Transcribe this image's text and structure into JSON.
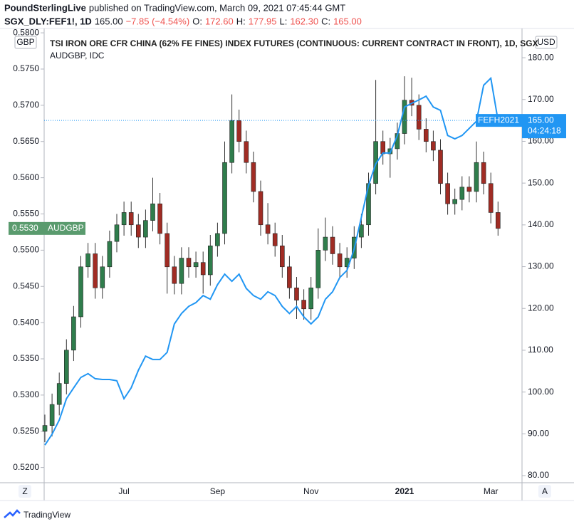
{
  "header": {
    "publisher": "PoundSterlingLive",
    "published": "published on TradingView.com, March 09, 2021 07:45:44 GMT",
    "quote": {
      "symbol": "SGX_DLY:FEF1!, 1D",
      "last": "165.00",
      "change": "−7.85 (−4.54%)",
      "o_label": "O:",
      "o": "172.60",
      "h_label": "H:",
      "h": "177.95",
      "l_label": "L:",
      "l": "162.30",
      "c_label": "C:",
      "c": "165.00"
    }
  },
  "footer": {
    "brand": "TradingView"
  },
  "buttons": {
    "left": "Z",
    "right": "A"
  },
  "chart_data": {
    "type": "candlestick",
    "legend": [
      "TSI IRON ORE CFR CHINA (62% FE FINES) INDEX FUTURES (CONTINUOUS: CURRENT CONTRACT IN FRONT), 1D, SGX",
      "AUDGBP, IDC"
    ],
    "y_label": "GBP",
    "y2_label": "USD",
    "grid": false,
    "categories": [
      null,
      null,
      null,
      null,
      null,
      null,
      null,
      null,
      null,
      null,
      null,
      "Jul",
      null,
      null,
      null,
      null,
      null,
      null,
      null,
      null,
      null,
      null,
      null,
      null,
      "Sep",
      null,
      null,
      null,
      null,
      null,
      null,
      null,
      null,
      null,
      null,
      null,
      null,
      "Nov",
      null,
      null,
      null,
      null,
      null,
      null,
      null,
      null,
      null,
      null,
      null,
      null,
      "2021",
      null,
      null,
      null,
      null,
      null,
      null,
      null,
      null,
      null,
      null,
      null,
      "Mar",
      null
    ],
    "ylim": [
      0.5179,
      0.5806
    ],
    "yticks": [
      {
        "value": 0.52,
        "label": "0.5200"
      },
      {
        "value": 0.525,
        "label": "0.5250"
      },
      {
        "value": 0.53,
        "label": "0.5300"
      },
      {
        "value": 0.535,
        "label": "0.5350"
      },
      {
        "value": 0.54,
        "label": "0.5400"
      },
      {
        "value": 0.545,
        "label": "0.5450"
      },
      {
        "value": 0.55,
        "label": "0.5500"
      },
      {
        "value": 0.555,
        "label": "0.5550"
      },
      {
        "value": 0.56,
        "label": "0.5600"
      },
      {
        "value": 0.565,
        "label": "0.5650"
      },
      {
        "value": 0.57,
        "label": "0.5700"
      },
      {
        "value": 0.575,
        "label": "0.5750"
      },
      {
        "value": 0.58,
        "label": "0.5800"
      }
    ],
    "y2lim": [
      78.3,
      187.0
    ],
    "y2ticks": [
      {
        "value": 80,
        "label": "80.00"
      },
      {
        "value": 90,
        "label": "90.00"
      },
      {
        "value": 100,
        "label": "100.00"
      },
      {
        "value": 110,
        "label": "110.00"
      },
      {
        "value": 120,
        "label": "120.00"
      },
      {
        "value": 130,
        "label": "130.00"
      },
      {
        "value": 140,
        "label": "140.00"
      },
      {
        "value": 150,
        "label": "150.00"
      },
      {
        "value": 160,
        "label": "160.00"
      },
      {
        "value": 170,
        "label": "170.00"
      },
      {
        "value": 180,
        "label": "180.00"
      }
    ],
    "series": [
      {
        "name": "AUDGBP",
        "type": "candlestick",
        "axis": "y",
        "up_color": "#2f7d4c",
        "down_color": "#a02c24",
        "label_color": "#5a9b6e",
        "price_label": {
          "value": 0.553,
          "label": "0.5530"
        },
        "open": [
          0.525,
          0.5258,
          0.5287,
          0.5316,
          0.5362,
          0.5408,
          0.5477,
          0.5495,
          0.5448,
          0.5477,
          0.5512,
          0.5535,
          0.5552,
          0.5535,
          0.5518,
          0.5541,
          0.5564,
          0.5523,
          0.5477,
          0.5454,
          0.5489,
          0.5477,
          0.5483,
          0.5466,
          0.5506,
          0.5523,
          0.5621,
          0.5679,
          0.565,
          0.5621,
          0.5581,
          0.5535,
          0.5523,
          0.5506,
          0.5477,
          0.5448,
          0.5431,
          0.5419,
          0.5448,
          0.55,
          0.5518,
          0.5495,
          0.5477,
          0.5489,
          0.5518,
          0.5535,
          0.5592,
          0.565,
          0.5633,
          0.564,
          0.5661,
          0.5707,
          0.57,
          0.5667,
          0.565,
          0.5638,
          0.5592,
          0.5564,
          0.557,
          0.5587,
          0.5581,
          0.5621,
          0.5592,
          0.5552
        ],
        "high": [
          0.5273,
          0.5302,
          0.5331,
          0.5377,
          0.5423,
          0.5492,
          0.551,
          0.551,
          0.5492,
          0.5527,
          0.555,
          0.5567,
          0.5567,
          0.555,
          0.5556,
          0.56,
          0.5579,
          0.5538,
          0.5492,
          0.5504,
          0.5504,
          0.5498,
          0.5498,
          0.5521,
          0.5538,
          0.565,
          0.5715,
          0.5694,
          0.5665,
          0.5636,
          0.5596,
          0.5565,
          0.5538,
          0.5521,
          0.5492,
          0.5463,
          0.5446,
          0.5463,
          0.553,
          0.5545,
          0.5533,
          0.551,
          0.5504,
          0.5533,
          0.555,
          0.5607,
          0.5735,
          0.5665,
          0.5655,
          0.5676,
          0.574,
          0.5738,
          0.5715,
          0.5682,
          0.5665,
          0.5653,
          0.5607,
          0.5585,
          0.5602,
          0.5602,
          0.565,
          0.5636,
          0.5607,
          0.5567
        ],
        "low": [
          0.5235,
          0.5243,
          0.5272,
          0.5301,
          0.5347,
          0.5393,
          0.5462,
          0.5433,
          0.5433,
          0.5462,
          0.5497,
          0.552,
          0.552,
          0.5503,
          0.5503,
          0.5526,
          0.5508,
          0.544,
          0.5439,
          0.5439,
          0.5462,
          0.5462,
          0.544,
          0.5451,
          0.5491,
          0.5508,
          0.5606,
          0.5635,
          0.5606,
          0.5566,
          0.552,
          0.5508,
          0.5491,
          0.5462,
          0.5433,
          0.5405,
          0.5404,
          0.5404,
          0.5433,
          0.5485,
          0.548,
          0.5462,
          0.5462,
          0.5474,
          0.5503,
          0.552,
          0.5577,
          0.5618,
          0.56,
          0.5625,
          0.5646,
          0.5685,
          0.5652,
          0.5635,
          0.5623,
          0.5577,
          0.5549,
          0.5549,
          0.5555,
          0.5566,
          0.5566,
          0.5577,
          0.5537,
          0.552
        ],
        "close": [
          0.5258,
          0.5287,
          0.5316,
          0.5362,
          0.5408,
          0.5477,
          0.5495,
          0.5448,
          0.5477,
          0.5512,
          0.5535,
          0.5552,
          0.5535,
          0.5518,
          0.5541,
          0.5564,
          0.5523,
          0.5477,
          0.5454,
          0.5489,
          0.5477,
          0.5483,
          0.5466,
          0.5506,
          0.5523,
          0.5621,
          0.5679,
          0.565,
          0.5621,
          0.5581,
          0.5535,
          0.5523,
          0.5506,
          0.5477,
          0.5448,
          0.5431,
          0.5419,
          0.5448,
          0.55,
          0.5518,
          0.5495,
          0.5477,
          0.5489,
          0.5518,
          0.5535,
          0.5592,
          0.565,
          0.5633,
          0.564,
          0.5661,
          0.5707,
          0.57,
          0.5667,
          0.565,
          0.5638,
          0.5592,
          0.5564,
          0.557,
          0.5587,
          0.5581,
          0.5621,
          0.5592,
          0.5552,
          0.553
        ]
      },
      {
        "name": "FEFH2021",
        "type": "line",
        "axis": "y2",
        "color": "#2196f3",
        "price_label": {
          "value": 165,
          "label": "165.00"
        },
        "countdown": "04:24:18",
        "values": [
          87.3,
          89.9,
          93.3,
          98.4,
          101.0,
          103.5,
          104.4,
          103.2,
          103.0,
          103.0,
          102.7,
          98.4,
          101.0,
          105.2,
          108.6,
          107.8,
          107.8,
          109.5,
          116.3,
          118.8,
          120.5,
          121.4,
          123.1,
          122.2,
          125.7,
          128.2,
          126.5,
          128.2,
          124.8,
          123.1,
          122.2,
          124.0,
          123.1,
          120.5,
          118.8,
          120.5,
          118.0,
          116.3,
          118.0,
          122.2,
          124.0,
          127.4,
          129.1,
          134.2,
          141.8,
          149.5,
          154.6,
          157.2,
          157.2,
          161.4,
          168.2,
          169.1,
          169.9,
          170.8,
          168.2,
          167.4,
          161.4,
          160.6,
          161.4,
          163.1,
          164.8,
          173.4,
          175.1,
          165.0
        ]
      }
    ]
  }
}
